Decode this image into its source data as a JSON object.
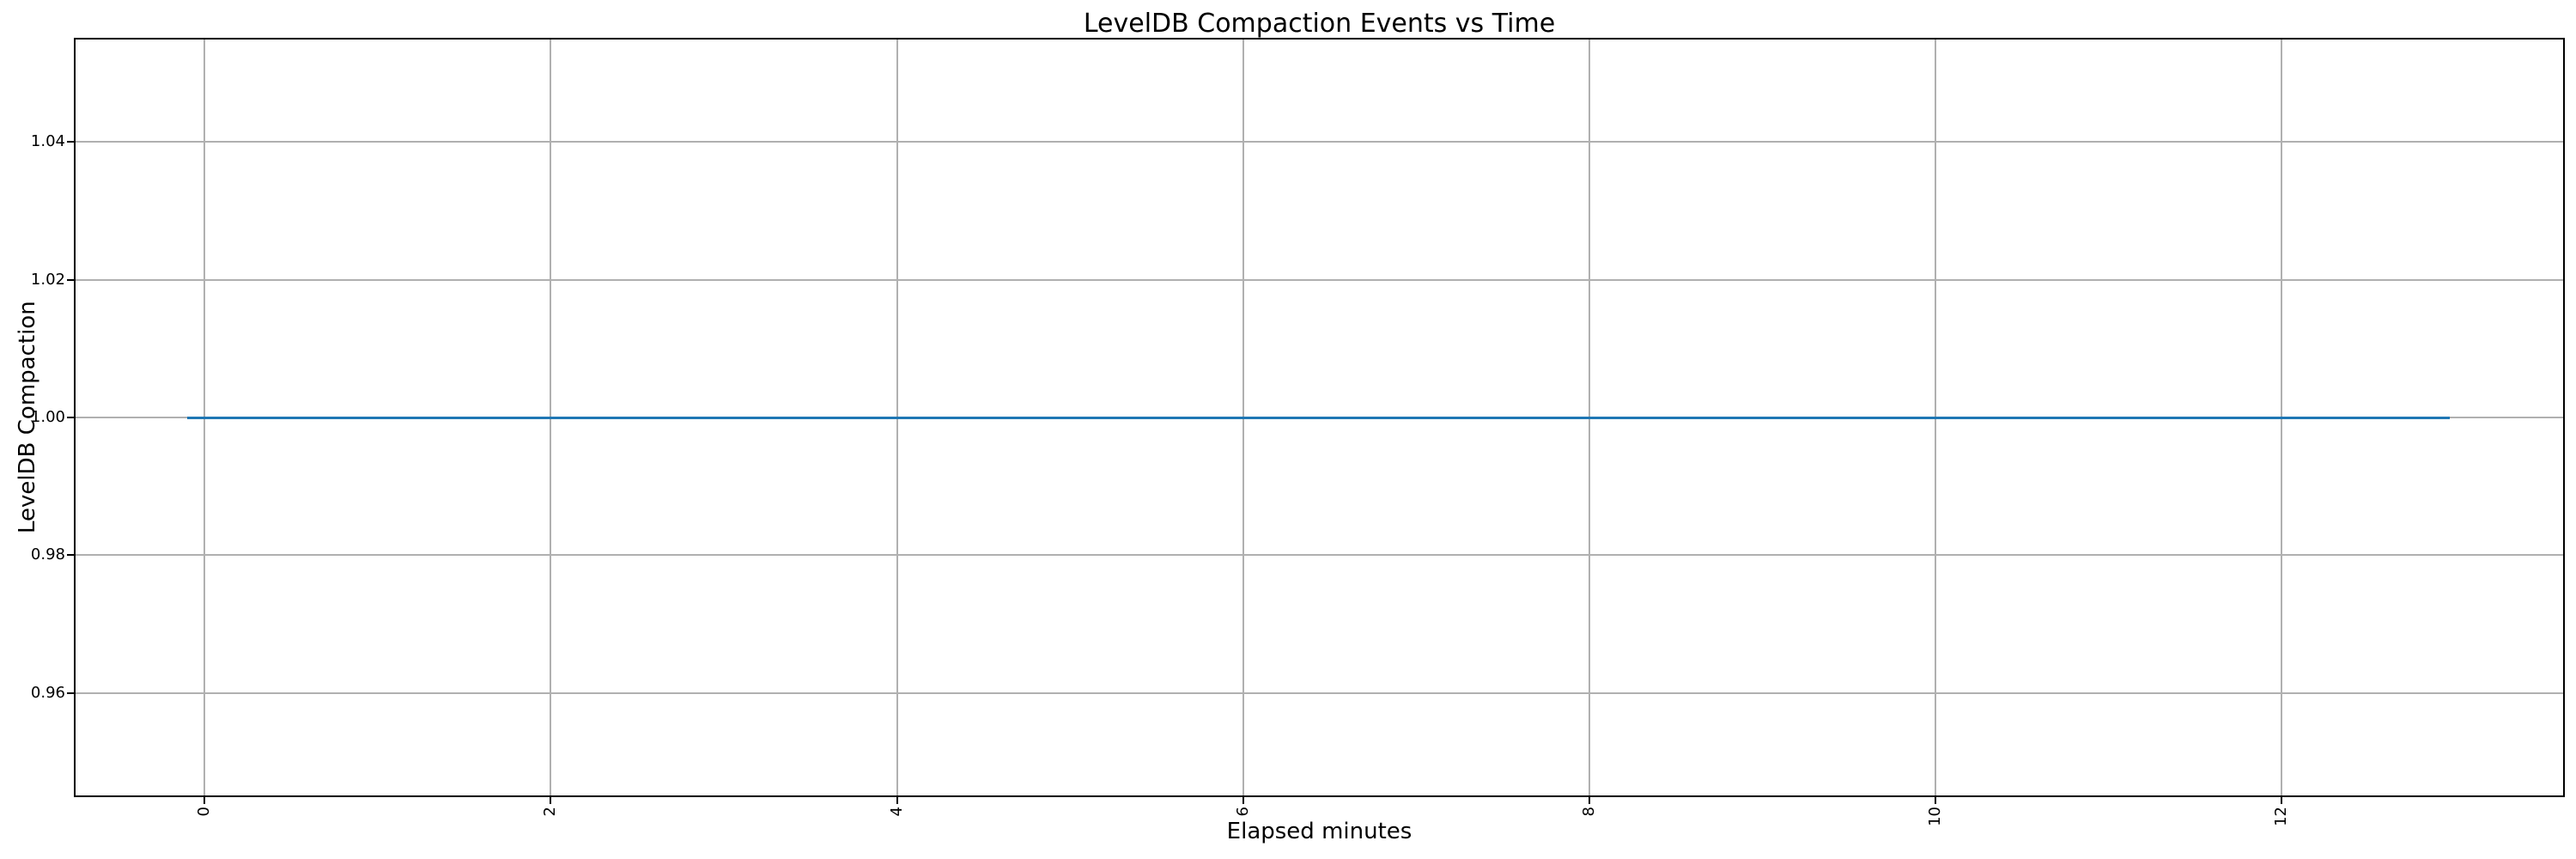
{
  "chart_data": {
    "type": "line",
    "title": "LevelDB Compaction Events vs Time",
    "xlabel": "Elapsed minutes",
    "ylabel": "LevelDB Compaction",
    "xlim": [
      -0.75,
      13.63
    ],
    "ylim": [
      0.945,
      1.055
    ],
    "xticks": [
      0,
      2,
      4,
      6,
      8,
      10,
      12
    ],
    "xtick_labels": [
      "0",
      "2",
      "4",
      "6",
      "8",
      "10",
      "12"
    ],
    "xtick_rotation_deg": 90,
    "yticks": [
      0.96,
      0.98,
      1.0,
      1.02,
      1.04
    ],
    "ytick_labels": [
      "0.96",
      "0.98",
      "1.00",
      "1.02",
      "1.04"
    ],
    "grid": true,
    "legend": "none",
    "series": [
      {
        "name": "LevelDB Compaction",
        "color": "#1f77b4",
        "x": [
          -0.1,
          12.97
        ],
        "y": [
          1.0,
          1.0
        ]
      }
    ],
    "colors": {
      "grid": "#b0b0b0",
      "spine": "#000000",
      "text": "#000000",
      "background": "#ffffff"
    }
  }
}
